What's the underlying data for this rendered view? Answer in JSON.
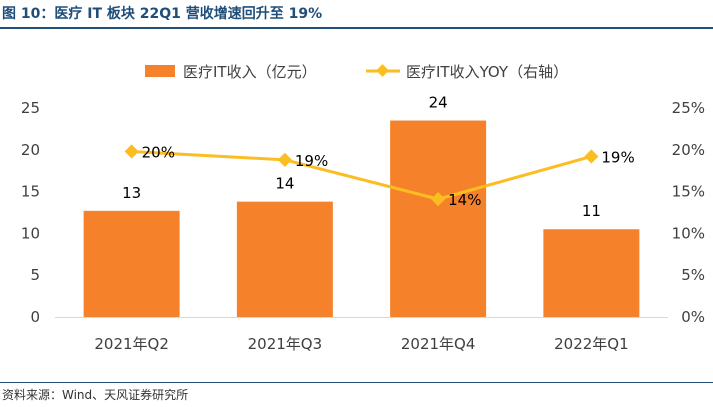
{
  "figure": {
    "title": "图 10：医疗 IT 板块 22Q1 营收增速回升至 19%",
    "source": "资料来源：Wind、天风证券研究所"
  },
  "colors": {
    "bar": "#f5822a",
    "line": "#fbbd21",
    "title": "#1f4e79",
    "axis": "#d9d9d9"
  },
  "chart_data": {
    "type": "bar",
    "categories": [
      "2021年Q2",
      "2021年Q3",
      "2021年Q4",
      "2022年Q1"
    ],
    "series": [
      {
        "name": "医疗IT收入（亿元）",
        "type": "bar",
        "axis": "left",
        "values": [
          13,
          14,
          24,
          11
        ],
        "labels": [
          "13",
          "14",
          "24",
          "11"
        ],
        "actual_values": [
          12.7,
          13.8,
          23.5,
          10.5
        ]
      },
      {
        "name": "医疗IT收入YOY（右轴）",
        "type": "line",
        "axis": "right",
        "values": [
          0.2,
          0.19,
          0.14,
          0.19
        ],
        "labels": [
          "20%",
          "19%",
          "14%",
          "19%"
        ],
        "actual_values": [
          0.198,
          0.188,
          0.141,
          0.192
        ]
      }
    ],
    "ylim_left": [
      0,
      25
    ],
    "yticks_left": [
      "0",
      "5",
      "10",
      "15",
      "20",
      "25"
    ],
    "ylim_right": [
      0,
      0.25
    ],
    "yticks_right": [
      "0%",
      "5%",
      "10%",
      "15%",
      "20%",
      "25%"
    ],
    "legend_position": "top",
    "grid": false
  }
}
